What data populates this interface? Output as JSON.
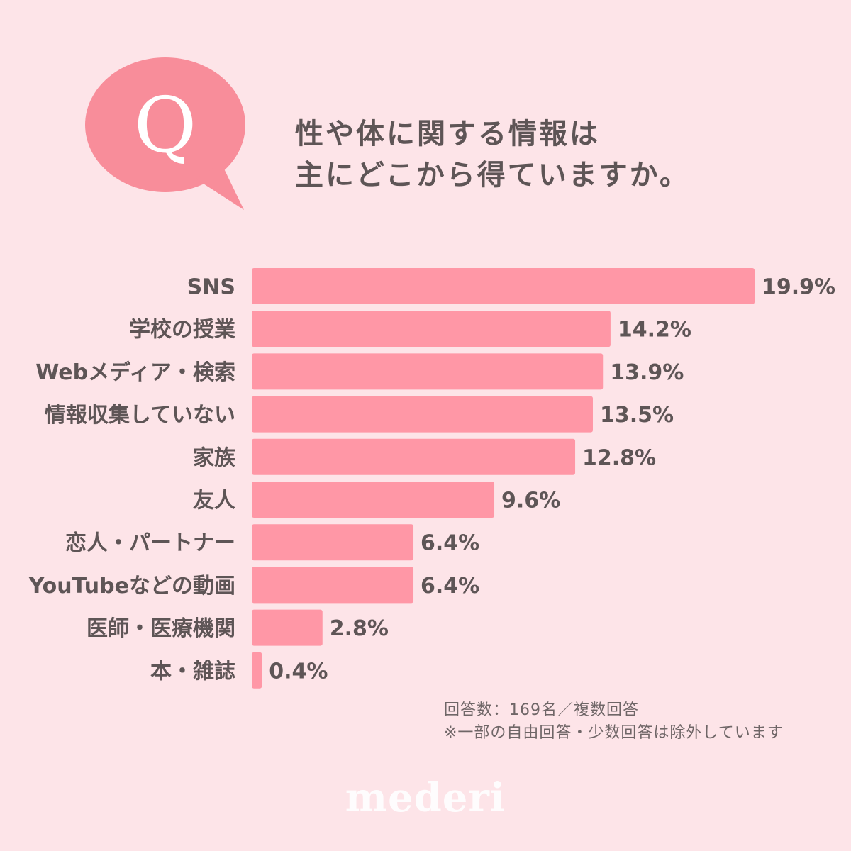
{
  "question": {
    "badge": "Q",
    "line1": "性や体に関する情報は",
    "line2": "主にどこから得ていますか。"
  },
  "chart_data": {
    "type": "bar",
    "orientation": "horizontal",
    "categories": [
      "SNS",
      "学校の授業",
      "Webメディア・検索",
      "情報収集していない",
      "家族",
      "友人",
      "恋人・パートナー",
      "YouTubeなどの動画",
      "医師・医療機関",
      "本・雑誌"
    ],
    "values": [
      19.9,
      14.2,
      13.9,
      13.5,
      12.8,
      9.6,
      6.4,
      6.4,
      2.8,
      0.4
    ],
    "value_labels": [
      "19.9%",
      "14.2%",
      "13.9%",
      "13.5%",
      "12.8%",
      "9.6%",
      "6.4%",
      "6.4%",
      "2.8%",
      "0.4%"
    ],
    "unit": "%",
    "xlim": [
      0,
      20
    ],
    "grid": false,
    "bar_color": "#ff97a6"
  },
  "footnote": {
    "line1": "回答数：169名／複数回答",
    "line2": "※一部の自由回答・少数回答は除外しています"
  },
  "brand": "mederi",
  "colors": {
    "background": "#fde4e8",
    "accent": "#f88d9a",
    "text": "#5e5556",
    "bar": "#ff97a6"
  }
}
